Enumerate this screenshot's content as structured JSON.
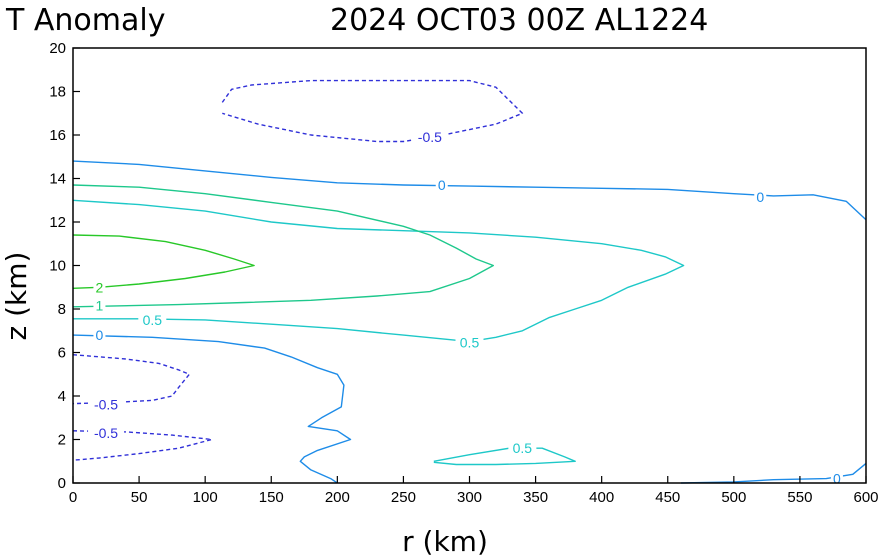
{
  "chart_data": {
    "type": "contour",
    "title_left": "T Anomaly",
    "title_right": "2024 OCT03 00Z   AL1224",
    "xlabel": "r (km)",
    "ylabel": "z (km)",
    "xlim": [
      0,
      600
    ],
    "ylim": [
      0,
      20
    ],
    "xticks": [
      0,
      50,
      100,
      150,
      200,
      250,
      300,
      350,
      400,
      450,
      500,
      550,
      600
    ],
    "yticks": [
      0,
      2,
      4,
      6,
      8,
      10,
      12,
      14,
      16,
      18,
      20
    ],
    "grid": false,
    "colors": {
      "neg": "#3030d8",
      "zero": "#1e8ce8",
      "half": "#1ec8c8",
      "one": "#1ec88c",
      "two": "#28c828"
    },
    "contours": [
      {
        "level": -0.5,
        "label": "-0.5",
        "color": "neg",
        "dashed": true,
        "points": [
          [
            113,
            17.5
          ],
          [
            120,
            18.1
          ],
          [
            135,
            18.3
          ],
          [
            180,
            18.5
          ],
          [
            230,
            18.5
          ],
          [
            300,
            18.5
          ],
          [
            320,
            18.2
          ],
          [
            340,
            17.0
          ],
          [
            320,
            16.5
          ],
          [
            280,
            16.0
          ],
          [
            250,
            15.7
          ],
          [
            230,
            15.7
          ],
          [
            180,
            16.0
          ],
          [
            140,
            16.5
          ],
          [
            113,
            17.0
          ]
        ],
        "labels": [
          [
            270,
            15.9
          ]
        ]
      },
      {
        "level": -0.5,
        "label": "-0.5",
        "color": "neg",
        "dashed": true,
        "points": [
          [
            0,
            5.9
          ],
          [
            40,
            5.7
          ],
          [
            65,
            5.5
          ],
          [
            80,
            5.2
          ],
          [
            88,
            5.0
          ],
          [
            80,
            4.4
          ],
          [
            75,
            4.0
          ],
          [
            60,
            3.8
          ],
          [
            30,
            3.7
          ],
          [
            0,
            3.65
          ]
        ],
        "labels": [
          [
            25,
            3.6
          ]
        ]
      },
      {
        "level": -0.5,
        "label": "-0.5",
        "color": "neg",
        "dashed": true,
        "points": [
          [
            0,
            2.4
          ],
          [
            40,
            2.35
          ],
          [
            75,
            2.2
          ],
          [
            105,
            2.0
          ],
          [
            80,
            1.6
          ],
          [
            50,
            1.35
          ],
          [
            20,
            1.15
          ],
          [
            0,
            1.05
          ]
        ],
        "labels": [
          [
            25,
            2.3
          ]
        ]
      },
      {
        "level": 0,
        "label": "0",
        "color": "zero",
        "dashed": false,
        "points": [
          [
            0,
            14.8
          ],
          [
            50,
            14.65
          ],
          [
            100,
            14.35
          ],
          [
            150,
            14.05
          ],
          [
            200,
            13.8
          ],
          [
            250,
            13.7
          ],
          [
            300,
            13.65
          ],
          [
            350,
            13.6
          ],
          [
            400,
            13.55
          ],
          [
            450,
            13.5
          ],
          [
            500,
            13.3
          ],
          [
            530,
            13.2
          ],
          [
            560,
            13.25
          ],
          [
            585,
            12.95
          ],
          [
            600,
            12.1
          ]
        ],
        "labels": [
          [
            279,
            13.7
          ],
          [
            520,
            13.15
          ]
        ]
      },
      {
        "level": 0,
        "label": "0",
        "color": "zero",
        "dashed": false,
        "points": [
          [
            0,
            6.8
          ],
          [
            60,
            6.7
          ],
          [
            110,
            6.5
          ],
          [
            145,
            6.2
          ],
          [
            165,
            5.8
          ],
          [
            185,
            5.3
          ],
          [
            200,
            5.0
          ],
          [
            205,
            4.5
          ],
          [
            203,
            3.5
          ],
          [
            188,
            3.0
          ],
          [
            178,
            2.6
          ],
          [
            200,
            2.4
          ],
          [
            210,
            2.0
          ],
          [
            185,
            1.5
          ],
          [
            175,
            1.2
          ],
          [
            172,
            1.0
          ],
          [
            180,
            0.6
          ],
          [
            195,
            0.2
          ],
          [
            200,
            0
          ]
        ],
        "labels": [
          [
            20,
            6.8
          ]
        ]
      },
      {
        "level": 0,
        "label": "0",
        "color": "zero",
        "dashed": false,
        "points": [
          [
            460,
            0
          ],
          [
            500,
            0.05
          ],
          [
            530,
            0.15
          ],
          [
            570,
            0.2
          ],
          [
            590,
            0.4
          ],
          [
            600,
            0.9
          ]
        ],
        "labels": [
          [
            578,
            0.2
          ]
        ]
      },
      {
        "level": 0.5,
        "label": "0.5",
        "color": "half",
        "dashed": false,
        "points": [
          [
            0,
            13.0
          ],
          [
            50,
            12.8
          ],
          [
            100,
            12.5
          ],
          [
            150,
            12.0
          ],
          [
            200,
            11.7
          ],
          [
            250,
            11.6
          ],
          [
            300,
            11.5
          ],
          [
            350,
            11.3
          ],
          [
            400,
            11.0
          ],
          [
            430,
            10.7
          ],
          [
            448,
            10.4
          ],
          [
            462,
            10.0
          ],
          [
            448,
            9.6
          ],
          [
            420,
            9.0
          ],
          [
            400,
            8.4
          ],
          [
            380,
            8.0
          ],
          [
            360,
            7.6
          ],
          [
            340,
            7.0
          ],
          [
            320,
            6.7
          ],
          [
            300,
            6.5
          ],
          [
            250,
            6.8
          ],
          [
            200,
            7.1
          ],
          [
            150,
            7.3
          ],
          [
            100,
            7.5
          ],
          [
            50,
            7.55
          ],
          [
            0,
            7.55
          ]
        ],
        "labels": [
          [
            300,
            6.45
          ],
          [
            60,
            7.5
          ]
        ]
      },
      {
        "level": 0.5,
        "label": "0.5",
        "color": "half",
        "dashed": false,
        "points": [
          [
            273,
            1.0
          ],
          [
            300,
            1.3
          ],
          [
            330,
            1.6
          ],
          [
            355,
            1.6
          ],
          [
            372,
            1.2
          ],
          [
            380,
            1.0
          ],
          [
            350,
            0.9
          ],
          [
            320,
            0.85
          ],
          [
            290,
            0.85
          ],
          [
            273,
            0.95
          ]
        ],
        "labels": [
          [
            340,
            1.6
          ]
        ]
      },
      {
        "level": 1,
        "label": "1",
        "color": "one",
        "dashed": false,
        "points": [
          [
            0,
            13.7
          ],
          [
            50,
            13.6
          ],
          [
            100,
            13.3
          ],
          [
            150,
            12.9
          ],
          [
            200,
            12.5
          ],
          [
            250,
            11.8
          ],
          [
            270,
            11.4
          ],
          [
            290,
            10.8
          ],
          [
            305,
            10.3
          ],
          [
            318,
            10.0
          ],
          [
            300,
            9.4
          ],
          [
            270,
            8.8
          ],
          [
            230,
            8.6
          ],
          [
            180,
            8.4
          ],
          [
            130,
            8.3
          ],
          [
            80,
            8.2
          ],
          [
            0,
            8.1
          ]
        ],
        "labels": [
          [
            20,
            8.15
          ]
        ]
      },
      {
        "level": 2,
        "label": "2",
        "color": "two",
        "dashed": false,
        "points": [
          [
            0,
            11.4
          ],
          [
            35,
            11.35
          ],
          [
            70,
            11.1
          ],
          [
            100,
            10.7
          ],
          [
            122,
            10.3
          ],
          [
            137,
            10.0
          ],
          [
            115,
            9.7
          ],
          [
            85,
            9.4
          ],
          [
            50,
            9.15
          ],
          [
            20,
            9.0
          ],
          [
            0,
            8.95
          ]
        ],
        "labels": [
          [
            20,
            9.0
          ]
        ]
      }
    ]
  }
}
